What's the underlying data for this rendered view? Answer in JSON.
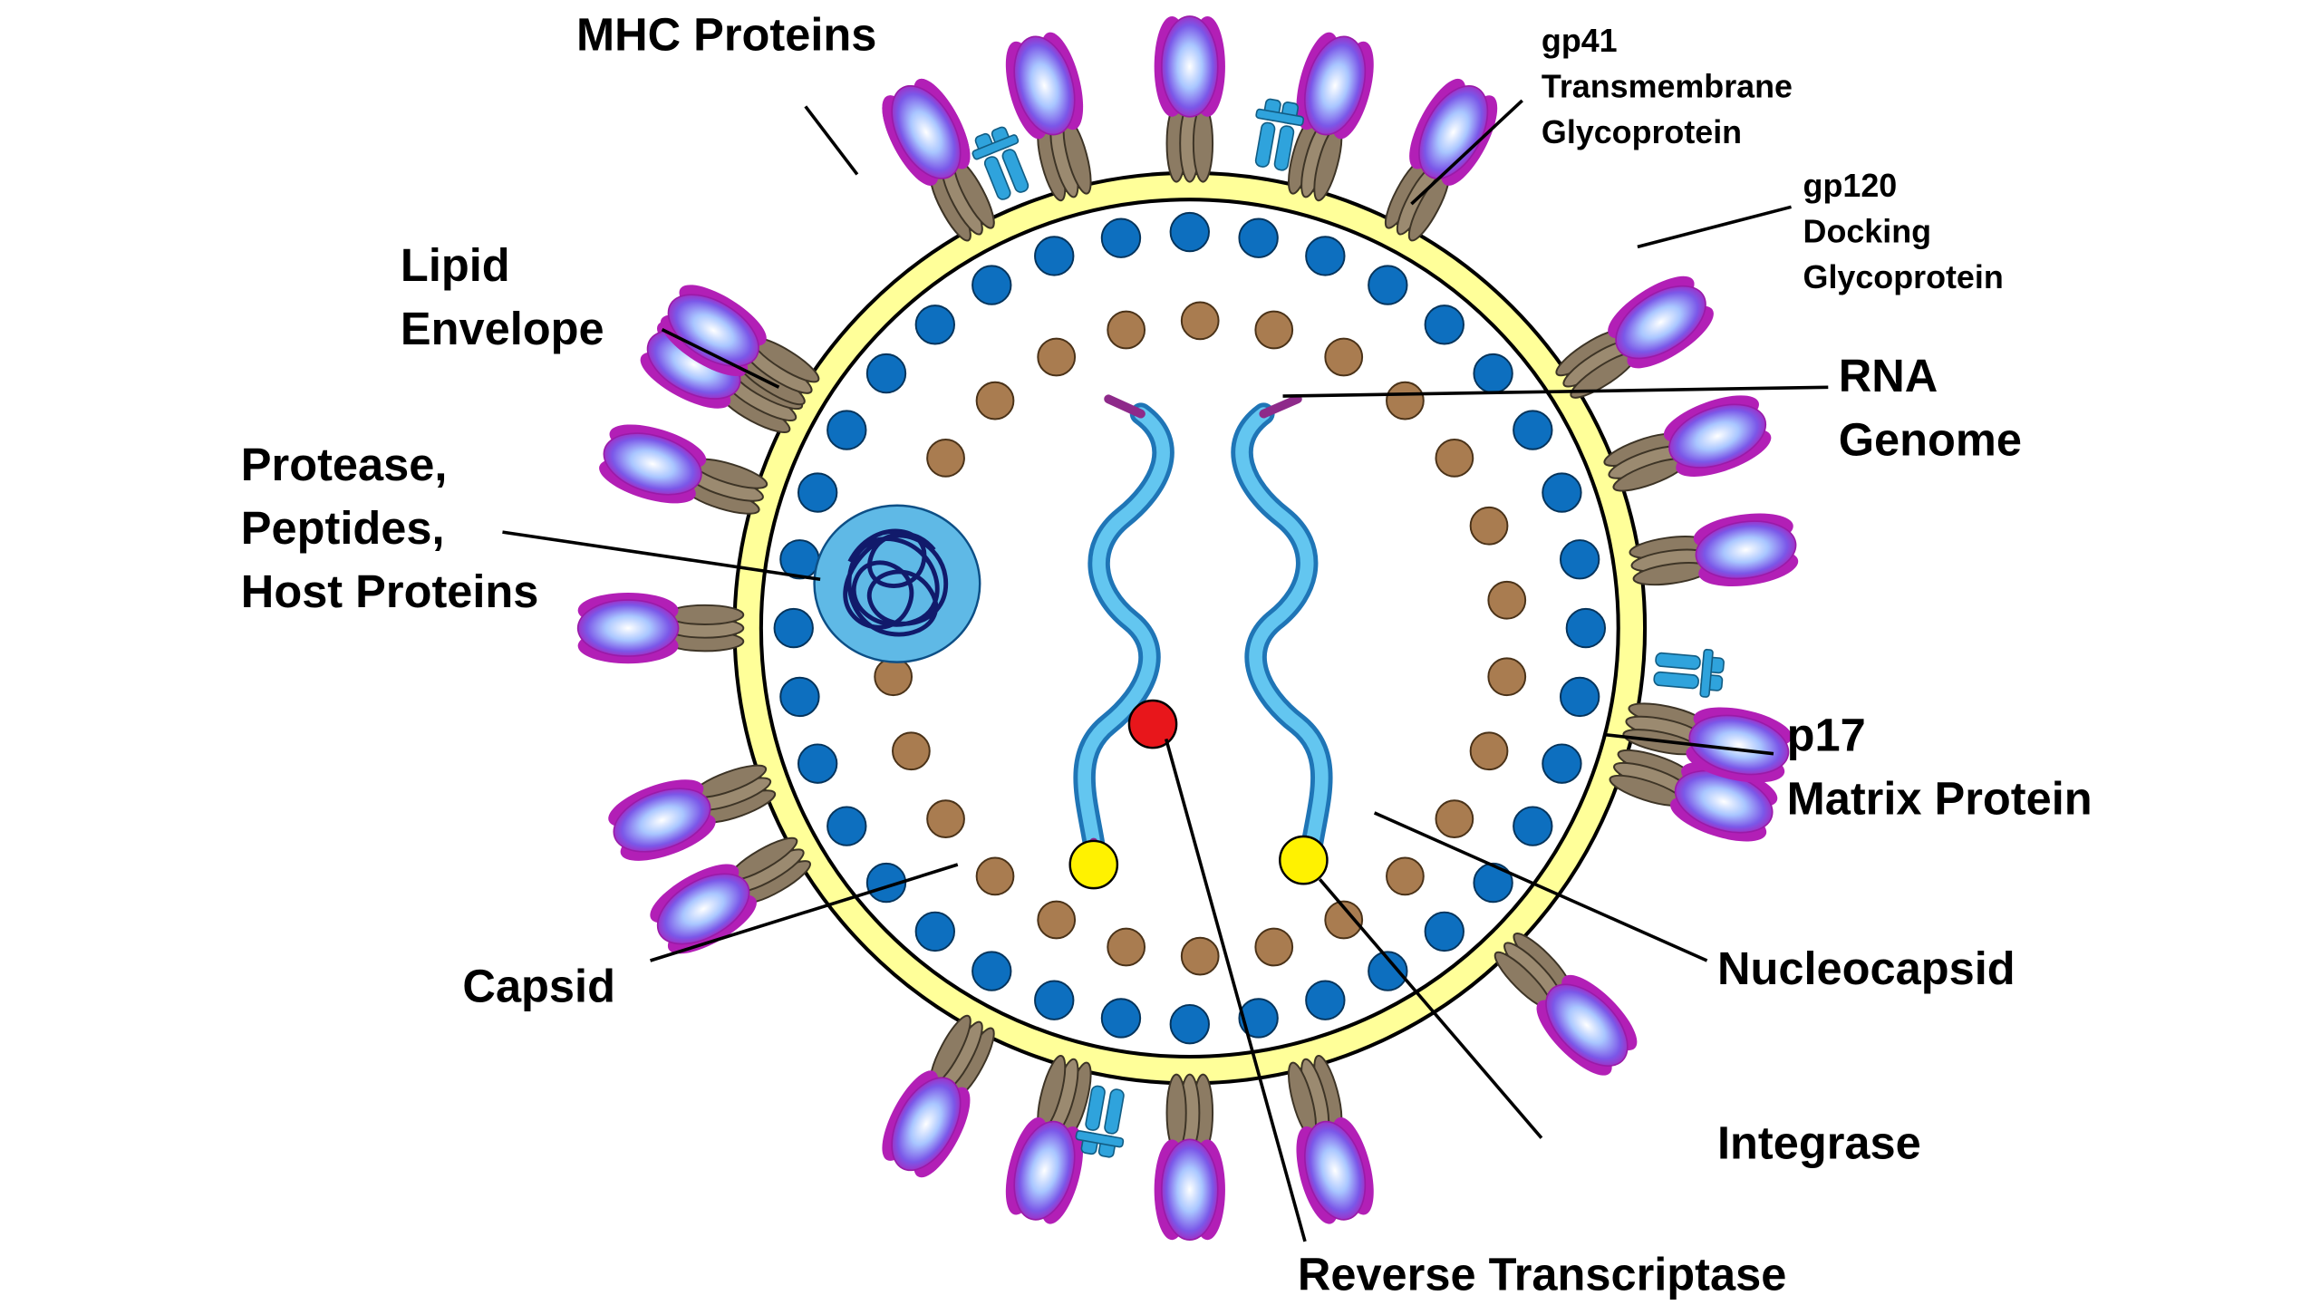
{
  "labels": {
    "mhc": "MHC Proteins",
    "gp41": [
      "gp41",
      "Transmembrane",
      "Glycoprotein"
    ],
    "gp120": [
      "gp120",
      "Docking",
      "Glycoprotein"
    ],
    "lipid": [
      "Lipid",
      "Envelope"
    ],
    "rna": [
      "RNA",
      "Genome"
    ],
    "protease": [
      "Protease,",
      "Peptides,",
      "Host Proteins"
    ],
    "p17": [
      "p17",
      "Matrix Protein"
    ],
    "nucleocapsid": "Nucleocapsid",
    "capsid": "Capsid",
    "integrase": "Integrase",
    "reverse_transcriptase": "Reverse Transcriptase"
  },
  "colors": {
    "envelope": "#ffff99",
    "matrix_protein": "#0d6fbf",
    "capsid_protein": "#a97c50",
    "rna": "#4fb6e6",
    "reverse_transcriptase": "#e8161b",
    "integrase": "#fff200",
    "gp120": "#a01eb4",
    "gp41": "#8c7b63",
    "mhc": "#2fa3dc"
  }
}
